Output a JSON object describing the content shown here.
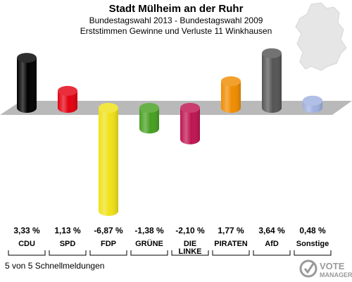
{
  "header": {
    "title": "Stadt Mülheim an der Ruhr",
    "subtitle1": "Bundestagswahl 2013 - Bundestagswahl 2009",
    "subtitle2": "Erststimmen Gewinne und Verluste 11 Winkhausen"
  },
  "chart_data": {
    "type": "bar",
    "categories": [
      "CDU",
      "SPD",
      "FDP",
      "GRÜNE",
      "DIE LINKE",
      "PIRATEN",
      "AfD",
      "Sonstige"
    ],
    "values": [
      3.33,
      1.13,
      -6.87,
      -1.38,
      -2.1,
      1.77,
      3.64,
      0.48
    ],
    "value_labels": [
      "3,33 %",
      "1,13 %",
      "-6,87 %",
      "-1,38 %",
      "-2,10 %",
      "1,77 %",
      "3,64 %",
      "0,48 %"
    ],
    "colors": [
      "#000000",
      "#e3000f",
      "#f0e118",
      "#46a020",
      "#be1450",
      "#f08c00",
      "#555555",
      "#a0b0e0"
    ],
    "unit": "%",
    "grid": false,
    "legend": "none"
  },
  "footer": {
    "text": "5 von 5 Schnellmeldungen"
  },
  "logo": {
    "line1": "VOTE",
    "line2": "MANAGER"
  },
  "icons": {
    "map": "germany-map-icon",
    "logo": "vote-manager-logo-icon"
  }
}
